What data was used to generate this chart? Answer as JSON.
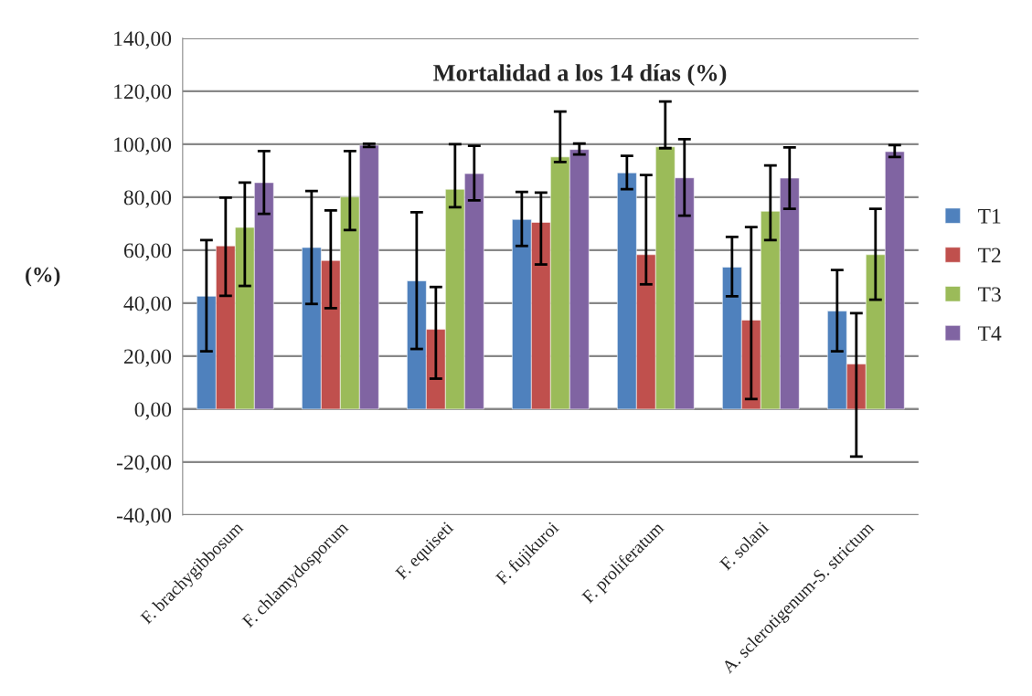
{
  "chart_data": {
    "type": "bar",
    "title": "Mortalidad a los 14 días (%)",
    "ylabel": "(%)",
    "categories": [
      "F. brachygibbosum",
      "F. chlamydosporum",
      "F. equiseti",
      "F. fujikuroi",
      "F. proliferatum",
      "F. solani",
      "A. sclerotigenum-S. strictum"
    ],
    "series": [
      {
        "name": "T1",
        "color": "#4f81bd",
        "values": [
          42.6,
          61.0,
          48.4,
          71.6,
          89.2,
          53.6,
          37.0
        ],
        "errors": [
          [
            21.8,
            63.8
          ],
          [
            39.7,
            82.3
          ],
          [
            22.7,
            74.3
          ],
          [
            61.6,
            82.0
          ],
          [
            83.0,
            95.6
          ],
          [
            42.6,
            65.0
          ],
          [
            21.8,
            52.5
          ]
        ]
      },
      {
        "name": "T2",
        "color": "#c0504d",
        "values": [
          61.6,
          56.1,
          30.1,
          70.5,
          58.3,
          33.6,
          17.0
        ],
        "errors": [
          [
            42.8,
            79.8
          ],
          [
            38.1,
            75.0
          ],
          [
            11.5,
            46.1
          ],
          [
            54.6,
            81.7
          ],
          [
            47.1,
            88.4
          ],
          [
            3.8,
            68.7
          ],
          [
            -17.9,
            36.2
          ]
        ]
      },
      {
        "name": "T3",
        "color": "#9bbb59",
        "values": [
          68.6,
          80.1,
          83.0,
          95.2,
          99.0,
          74.7,
          58.3
        ],
        "errors": [
          [
            46.5,
            85.5
          ],
          [
            67.6,
            97.4
          ],
          [
            76.2,
            100.0
          ],
          [
            93.3,
            112.3
          ],
          [
            98.5,
            116.1
          ],
          [
            63.8,
            92.0
          ],
          [
            41.3,
            75.6
          ]
        ]
      },
      {
        "name": "T4",
        "color": "#8064a2",
        "values": [
          85.5,
          99.6,
          88.9,
          98.0,
          87.3,
          87.2,
          97.2
        ],
        "errors": [
          [
            73.7,
            97.4
          ],
          [
            99.0,
            100.2
          ],
          [
            78.8,
            99.4
          ],
          [
            96.1,
            100.3
          ],
          [
            73.0,
            101.9
          ],
          [
            75.6,
            98.8
          ],
          [
            95.2,
            99.7
          ]
        ]
      }
    ],
    "ylim": [
      -40,
      140
    ],
    "yticks": [
      {
        "value": -40,
        "label": "-40,00"
      },
      {
        "value": -20,
        "label": "-20,00"
      },
      {
        "value": 0,
        "label": "0,00"
      },
      {
        "value": 20,
        "label": "20,00"
      },
      {
        "value": 40,
        "label": "40,00"
      },
      {
        "value": 60,
        "label": "60,00"
      },
      {
        "value": 80,
        "label": "80,00"
      },
      {
        "value": 100,
        "label": "100,00"
      },
      {
        "value": 120,
        "label": "120,00"
      },
      {
        "value": 140,
        "label": "140,00"
      }
    ],
    "grid": "y",
    "legend": "right"
  }
}
